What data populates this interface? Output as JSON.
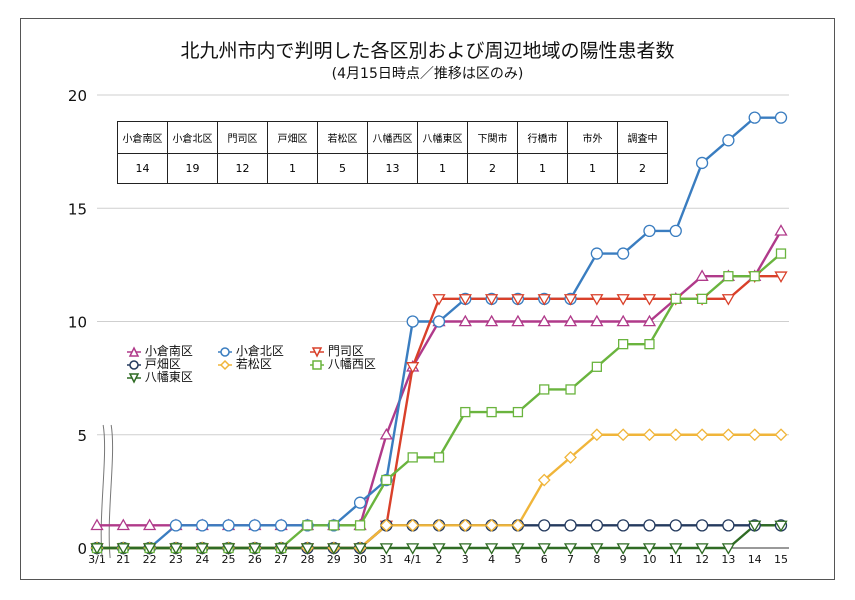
{
  "title": "北九州市内で判明した各区別および周辺地域の陽性患者数",
  "subtitle": "(4月15日時点／推移は区のみ)",
  "summary_table": {
    "headers": [
      "小倉南区",
      "小倉北区",
      "門司区",
      "戸畑区",
      "若松区",
      "八幡西区",
      "八幡東区",
      "下関市",
      "行橋市",
      "市外",
      "調査中"
    ],
    "values": [
      "14",
      "19",
      "12",
      "1",
      "5",
      "13",
      "1",
      "2",
      "1",
      "1",
      "2"
    ]
  },
  "chart_data": {
    "type": "line",
    "title": "北九州市内で判明した各区別および周辺地域の陽性患者数",
    "subtitle": "(4月15日時点／推移は区のみ)",
    "x": [
      "3/1",
      "21",
      "22",
      "23",
      "24",
      "25",
      "26",
      "27",
      "28",
      "29",
      "30",
      "31",
      "4/1",
      "2",
      "3",
      "4",
      "5",
      "6",
      "7",
      "8",
      "9",
      "10",
      "11",
      "12",
      "13",
      "14",
      "15"
    ],
    "ylim": [
      0,
      20
    ],
    "yticks": [
      0,
      5,
      10,
      15,
      20
    ],
    "grid": true,
    "legend_position": "left-middle",
    "series": [
      {
        "name": "小倉南区",
        "color": "#b03a8a",
        "marker": "triangle-up",
        "values": [
          1,
          1,
          1,
          1,
          1,
          1,
          1,
          1,
          1,
          1,
          1,
          5,
          8,
          10,
          10,
          10,
          10,
          10,
          10,
          10,
          10,
          10,
          11,
          12,
          12,
          12,
          14
        ]
      },
      {
        "name": "小倉北区",
        "color": "#3a7dc0",
        "marker": "circle",
        "values": [
          0,
          0,
          0,
          1,
          1,
          1,
          1,
          1,
          1,
          1,
          2,
          3,
          10,
          10,
          11,
          11,
          11,
          11,
          11,
          13,
          13,
          14,
          14,
          17,
          18,
          19,
          19
        ]
      },
      {
        "name": "門司区",
        "color": "#d9402a",
        "marker": "triangle-down",
        "values": [
          0,
          0,
          0,
          0,
          0,
          0,
          0,
          0,
          0,
          0,
          0,
          1,
          8,
          11,
          11,
          11,
          11,
          11,
          11,
          11,
          11,
          11,
          11,
          11,
          11,
          12,
          12
        ]
      },
      {
        "name": "戸畑区",
        "color": "#243a5e",
        "marker": "circle",
        "values": [
          0,
          0,
          0,
          0,
          0,
          0,
          0,
          0,
          0,
          0,
          0,
          1,
          1,
          1,
          1,
          1,
          1,
          1,
          1,
          1,
          1,
          1,
          1,
          1,
          1,
          1,
          1
        ]
      },
      {
        "name": "若松区",
        "color": "#f0b53a",
        "marker": "diamond",
        "values": [
          0,
          0,
          0,
          0,
          0,
          0,
          0,
          0,
          0,
          0,
          0,
          1,
          1,
          1,
          1,
          1,
          1,
          3,
          4,
          5,
          5,
          5,
          5,
          5,
          5,
          5,
          5
        ]
      },
      {
        "name": "八幡西区",
        "color": "#6ab43e",
        "marker": "square",
        "values": [
          0,
          0,
          0,
          0,
          0,
          0,
          0,
          0,
          1,
          1,
          1,
          3,
          4,
          4,
          6,
          6,
          6,
          7,
          7,
          8,
          9,
          9,
          11,
          11,
          12,
          12,
          13
        ]
      },
      {
        "name": "八幡東区",
        "color": "#2f6b24",
        "marker": "triangle-down",
        "values": [
          0,
          0,
          0,
          0,
          0,
          0,
          0,
          0,
          0,
          0,
          0,
          0,
          0,
          0,
          0,
          0,
          0,
          0,
          0,
          0,
          0,
          0,
          0,
          0,
          0,
          1,
          1
        ]
      }
    ]
  }
}
